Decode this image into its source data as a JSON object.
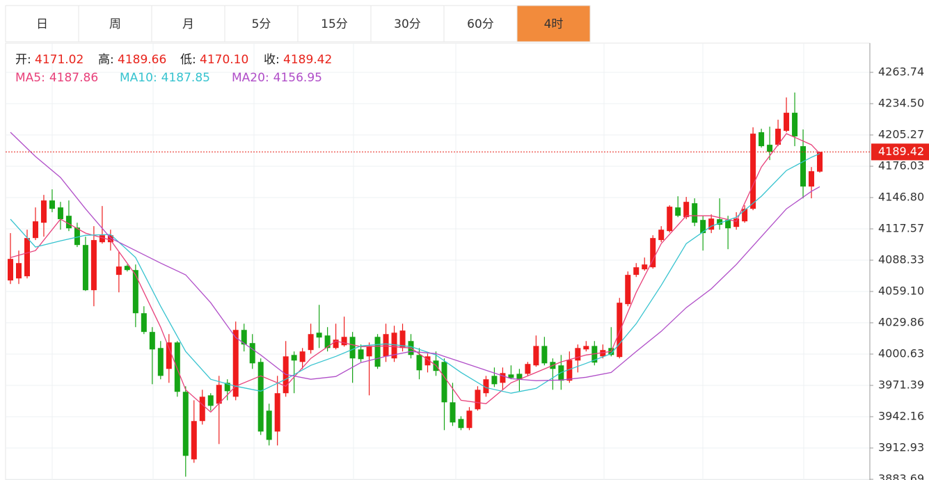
{
  "tabs": [
    "日",
    "周",
    "月",
    "5分",
    "15分",
    "30分",
    "60分",
    "4时"
  ],
  "active_tab": 7,
  "header_labels": [
    "开:",
    "高:",
    "低:",
    "收:"
  ],
  "header_values": [
    "4171.02",
    "4189.66",
    "4170.10",
    "4189.42"
  ],
  "label_suffix": ":",
  "chart_data": {
    "type": "candlestick",
    "up_color": "#ee1c1c",
    "down_color": "#16a516",
    "ylim": [
      3883.04,
      4291.02
    ],
    "yticks": [
      4263.74,
      {
        "value": 4234.5,
        "label": "4234.50"
      },
      4205.27,
      4176.03,
      {
        "value": 4146.8,
        "label": "4146.80"
      },
      4117.57,
      4088.33,
      {
        "value": 4059.1,
        "label": "4059.10"
      },
      4029.86,
      4000.63,
      3971.39,
      3942.16,
      3912.93,
      3883.69
    ],
    "grid": true,
    "last_price_label": "4189.42",
    "open": [
      4069.4,
      4071.3,
      4073.3,
      4109.0,
      4123.3,
      4144.1,
      4137.6,
      4129.8,
      4118.8,
      4102.5,
      4060.3,
      4105.1,
      4105.1,
      4074.6,
      4083.0,
      4079.1,
      4038.8,
      4021.3,
      4006.3,
      3986.8,
      4011.5,
      3965.4,
      3902.3,
      3938.1,
      3962.1,
      3954.3,
      3973.8,
      3960.8,
      4023.2,
      4010.9,
      3993.3,
      3947.8,
      3928.3,
      3964.1,
      3999.8,
      3993.3,
      4004.4,
      4020.6,
      4018.0,
      4006.3,
      4008.9,
      4016.7,
      4005.0,
      3998.5,
      4016.7,
      3998.5,
      3996.6,
      4006.3,
      4012.8,
      3999.8,
      3990.1,
      3994.6,
      3993.3,
      3955.6,
      3940.0,
      3931.6,
      3949.1,
      3964.1,
      3980.3,
      3973.8,
      3981.6,
      3982.2,
      3982.2,
      3990.1,
      4008.2,
      3993.3,
      3990.1,
      3975.8,
      3994.6,
      4005.0,
      4008.2,
      3998.5,
      4006.3,
      3997.9,
      4047.3,
      4074.6,
      4079.8,
      4081.7,
      4107.1,
      4115.5,
      4137.6,
      4128.5,
      4141.5,
      4125.9,
      4116.8,
      4126.6,
      4125.9,
      4119.4,
      4124.6,
      4136.3,
      4207.8,
      4196.1,
      4196.1,
      4209.1,
      4226.0,
      4194.8,
      4157.1,
      4171.02
    ],
    "high": [
      4113.6,
      4097.3,
      4116.8,
      4137.6,
      4149.3,
      4154.5,
      4142.8,
      4144.1,
      4123.3,
      4110.3,
      4120.1,
      4138.9,
      4116.8,
      4096.0,
      4084.3,
      4084.3,
      4045.3,
      4025.8,
      4012.8,
      4019.3,
      4012.8,
      3970.6,
      3957.5,
      3967.3,
      3964.1,
      3980.3,
      3977.1,
      4031.0,
      4029.0,
      4019.3,
      3996.6,
      3954.3,
      3980.3,
      4012.8,
      4003.1,
      4006.3,
      4029.0,
      4046.6,
      4025.8,
      4029.0,
      4035.6,
      4021.3,
      4009.6,
      4011.5,
      4019.3,
      4029.0,
      4027.1,
      4029.0,
      4019.3,
      4006.3,
      4001.1,
      4003.1,
      3996.6,
      3973.8,
      3942.6,
      3951.1,
      3970.6,
      3980.3,
      3988.1,
      3988.1,
      3990.1,
      3986.8,
      3993.3,
      4018.0,
      4016.7,
      3996.6,
      3999.8,
      4003.1,
      4009.6,
      4012.8,
      4012.8,
      4009.6,
      4025.8,
      4053.1,
      4077.8,
      4085.6,
      4090.8,
      4111.6,
      4120.1,
      4139.6,
      4148.0,
      4147.4,
      4146.1,
      4129.8,
      4131.1,
      4146.1,
      4129.8,
      4133.1,
      4139.6,
      4212.4,
      4211.1,
      4213.0,
      4219.5,
      4240.3,
      4244.9,
      4210.4,
      4175.3,
      4189.66
    ],
    "low": [
      4066.1,
      4066.1,
      4071.3,
      4107.1,
      4110.3,
      4133.1,
      4116.8,
      4115.5,
      4100.6,
      4059.6,
      4045.3,
      4103.8,
      4097.3,
      4058.3,
      4077.8,
      4025.8,
      4019.3,
      3972.5,
      3977.1,
      3973.8,
      3960.8,
      3886.1,
      3899.1,
      3934.8,
      3947.8,
      3916.6,
      3957.5,
      3957.5,
      4003.1,
      3986.8,
      3925.1,
      3915.3,
      3915.3,
      3960.8,
      3964.1,
      3986.8,
      4001.1,
      4006.3,
      4003.1,
      4005.0,
      4007.6,
      3973.8,
      3993.3,
      3962.1,
      3986.8,
      3993.3,
      3993.3,
      4003.1,
      3996.6,
      3977.1,
      3983.5,
      3980.3,
      3929.6,
      3933.5,
      3929.6,
      3929.6,
      3947.8,
      3960.8,
      3969.9,
      3967.3,
      3977.1,
      3966.0,
      3980.3,
      3988.8,
      3990.1,
      3967.3,
      3967.3,
      3973.8,
      3983.5,
      4003.1,
      3990.1,
      3996.6,
      3998.5,
      3996.6,
      4045.3,
      4072.6,
      4078.5,
      4080.4,
      4105.1,
      4114.2,
      4128.5,
      4126.6,
      4120.1,
      4097.3,
      4113.6,
      4116.8,
      4098.6,
      4116.8,
      4123.3,
      4135.0,
      4193.5,
      4181.8,
      4194.8,
      4207.8,
      4194.8,
      4146.1,
      4146.1,
      4170.1
    ],
    "close": [
      4089.5,
      4085.6,
      4109.0,
      4124.6,
      4144.1,
      4136.3,
      4126.6,
      4118.1,
      4102.5,
      4060.3,
      4107.1,
      4111.6,
      4111.6,
      4082.4,
      4079.1,
      4038.8,
      4021.3,
      4005.0,
      3980.3,
      4011.5,
      3965.4,
      3905.6,
      3938.1,
      3960.8,
      3952.3,
      3971.9,
      3966.0,
      4023.2,
      4009.6,
      3992.0,
      3928.3,
      3920.5,
      3964.1,
      3998.5,
      3994.6,
      4003.1,
      4019.3,
      4016.1,
      4006.3,
      4014.1,
      4016.7,
      3996.6,
      3995.9,
      4007.6,
      3988.8,
      4019.3,
      4020.6,
      4022.6,
      3999.8,
      3985.5,
      3998.5,
      3984.9,
      3955.6,
      3936.8,
      3931.6,
      3947.8,
      3967.3,
      3977.1,
      3972.5,
      3982.9,
      3978.4,
      3977.1,
      3991.4,
      4008.2,
      3992.0,
      3986.8,
      3975.8,
      3995.2,
      4006.3,
      4008.2,
      3992.7,
      4004.4,
      3999.8,
      4048.6,
      4074.6,
      4081.7,
      4084.3,
      4109.0,
      4116.8,
      4138.3,
      4129.8,
      4142.8,
      4123.3,
      4113.6,
      4127.2,
      4121.4,
      4118.1,
      4127.2,
      4136.3,
      4206.5,
      4194.8,
      4189.6,
      4211.1,
      4226.0,
      4203.9,
      4157.1,
      4171.4,
      4189.42
    ],
    "ma_x": [
      0,
      3,
      6,
      9,
      12,
      15,
      18,
      21,
      24,
      27,
      30,
      33,
      36,
      39,
      42,
      45,
      48,
      51,
      54,
      57,
      60,
      63,
      66,
      69,
      72,
      75,
      78,
      81,
      84,
      87,
      90,
      93,
      96,
      97
    ],
    "series": [
      {
        "name": "MA5",
        "color": "#e8407a",
        "values": [
          4090.8,
          4097.3,
          4126.6,
          4113.6,
          4107.1,
          4074.6,
          4025.8,
          3967.3,
          3946.5,
          3970.6,
          3980.3,
          3970.6,
          3996.6,
          4012.8,
          4007.6,
          4008.2,
          4006.3,
          3990.1,
          3957.5,
          3954.3,
          3973.8,
          3983.5,
          3993.3,
          3999.8,
          4003.1,
          4058.3,
          4103.8,
          4129.8,
          4129.8,
          4124.6,
          4175.3,
          4206.5,
          4196.1,
          4187.86
        ]
      },
      {
        "name": "MA10",
        "color": "#36c3cf",
        "values": [
          4126.6,
          4100.6,
          4106.4,
          4111.6,
          4112.3,
          4090.8,
          4045.3,
          4003.1,
          3977.1,
          3970.6,
          3966.0,
          3977.1,
          3990.1,
          3998.5,
          4008.2,
          4010.2,
          4007.6,
          3999.8,
          3983.5,
          3969.3,
          3964.1,
          3968.6,
          3983.5,
          3992.0,
          4001.1,
          4029.0,
          4064.8,
          4103.8,
          4120.1,
          4128.5,
          4148.0,
          4172.1,
          4184.4,
          4187.85
        ]
      },
      {
        "name": "MA20",
        "color": "#b04ec8",
        "values": [
          4207.8,
          4185.1,
          4165.6,
          4136.3,
          4109.0,
          4097.3,
          4085.6,
          4074.6,
          4048.6,
          4016.1,
          3999.8,
          3981.6,
          3977.1,
          3979.7,
          3992.7,
          3998.5,
          4003.1,
          4001.1,
          3993.3,
          3985.5,
          3977.7,
          3975.8,
          3976.4,
          3979.0,
          3983.5,
          4003.1,
          4021.9,
          4044.0,
          4061.6,
          4084.3,
          4110.3,
          4136.3,
          4152.6,
          4156.95
        ]
      }
    ]
  }
}
